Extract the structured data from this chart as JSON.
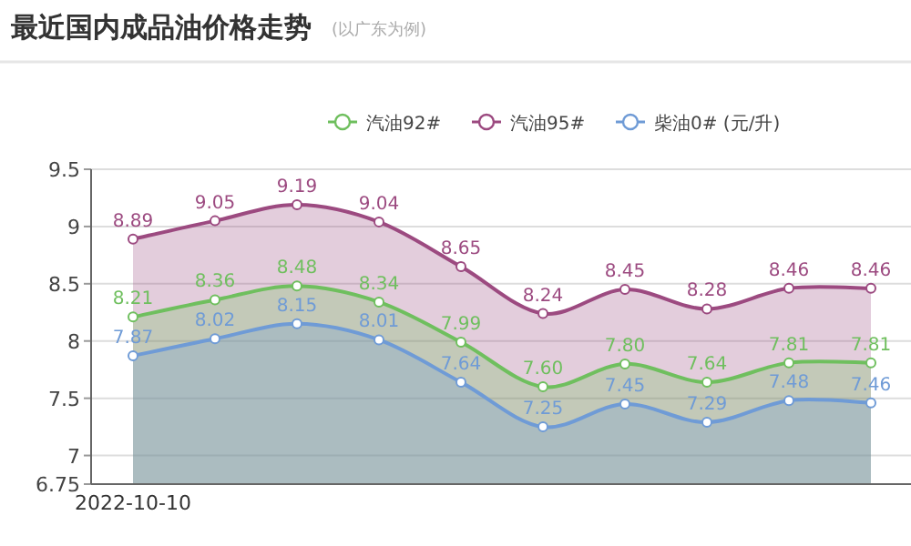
{
  "chart_data": {
    "type": "area",
    "title": "最近国内成品油价格走势",
    "subtitle": "(以广东为例)",
    "categories": [
      "2022-10-10",
      null,
      null,
      null,
      null,
      null,
      null,
      null,
      null,
      null
    ],
    "series": [
      {
        "name": "汽油92#",
        "color": "#6fbf5e",
        "values": [
          8.21,
          8.36,
          8.48,
          8.34,
          7.99,
          7.6,
          7.8,
          7.64,
          7.81,
          7.81
        ],
        "value_labels": [
          "8.21",
          "8.36",
          "8.48",
          "8.34",
          "7.99",
          "7.60",
          "7.80",
          "7.64",
          "7.81",
          "7.81"
        ]
      },
      {
        "name": "汽油95#",
        "color": "#9c4a80",
        "values": [
          8.89,
          9.05,
          9.19,
          9.04,
          8.65,
          8.24,
          8.45,
          8.28,
          8.46,
          8.46
        ],
        "value_labels": [
          "8.89",
          "9.05",
          "9.19",
          "9.04",
          "8.65",
          "8.24",
          "8.45",
          "8.28",
          "8.46",
          "8.46"
        ]
      },
      {
        "name": "柴油0# (元/升)",
        "color": "#6f9bd6",
        "values": [
          7.87,
          8.02,
          8.15,
          8.01,
          7.64,
          7.25,
          7.45,
          7.29,
          7.48,
          7.46
        ],
        "value_labels": [
          "7.87",
          "8.02",
          "8.15",
          "8.01",
          "7.64",
          "7.25",
          "7.45",
          "7.29",
          "7.48",
          "7.46"
        ]
      }
    ],
    "ylim": [
      6.75,
      9.5
    ],
    "yticks": [
      6.75,
      7,
      7.5,
      8,
      8.5,
      9,
      9.5
    ],
    "grid": "y",
    "legend": "top right",
    "marker": "circle"
  }
}
